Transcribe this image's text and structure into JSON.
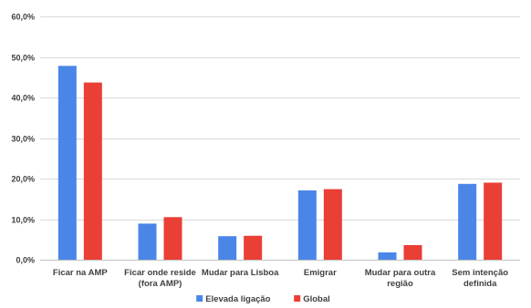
{
  "chart_data": {
    "type": "bar",
    "title": "",
    "xlabel": "",
    "ylabel": "",
    "ylim": [
      0,
      60
    ],
    "y_ticks": [
      "0,0%",
      "10,0%",
      "20,0%",
      "30,0%",
      "40,0%",
      "50,0%",
      "60,0%"
    ],
    "grid": true,
    "legend": "bottom",
    "categories": [
      [
        "Ficar na AMP"
      ],
      [
        "Ficar onde reside",
        "(fora AMP)"
      ],
      [
        "Mudar para Lisboa"
      ],
      [
        "Emigrar"
      ],
      [
        "Mudar para outra",
        "região"
      ],
      [
        "Sem intenção",
        "definida"
      ]
    ],
    "series": [
      {
        "name": "Elevada ligação",
        "color": "#4a86e8",
        "values": [
          47.8,
          8.9,
          5.8,
          17.1,
          1.8,
          18.7
        ]
      },
      {
        "name": "Global",
        "color": "#ea3f35",
        "values": [
          43.7,
          10.5,
          5.9,
          17.4,
          3.6,
          19.0
        ]
      }
    ]
  }
}
